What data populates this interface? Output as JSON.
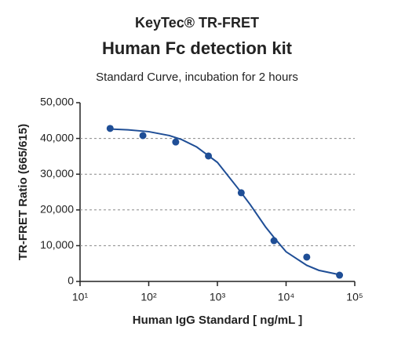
{
  "chart_data": {
    "type": "scatter",
    "title": "KeyTec® TR-FRET",
    "subtitle": "Human Fc detection kit",
    "caption": "Standard Curve, incubation for 2 hours",
    "x_label": "Human IgG Standard  [ ng/mL ]",
    "y_label": "TR-FRET Ratio (665/615)",
    "x_scale": "log",
    "xlim": [
      10,
      100000
    ],
    "xticks": [
      {
        "value": 10,
        "label": "10¹"
      },
      {
        "value": 100,
        "label": "10²"
      },
      {
        "value": 1000,
        "label": "10³"
      },
      {
        "value": 10000,
        "label": "10⁴"
      },
      {
        "value": 100000,
        "label": "10⁵"
      }
    ],
    "ylim": [
      0,
      50000
    ],
    "yticks": [
      0,
      {
        "value": 10000,
        "label": "10,000"
      },
      {
        "value": 20000,
        "label": "20,000"
      },
      {
        "value": 30000,
        "label": "30,000"
      },
      {
        "value": 40000,
        "label": "40,000"
      },
      {
        "value": 50000,
        "label": "50,000"
      }
    ],
    "grid": true,
    "series": [
      {
        "style": "markers",
        "color": "#1f4e96",
        "x": [
          27.4,
          82.3,
          247,
          740,
          2222,
          6667,
          20000,
          60000
        ],
        "values": [
          42800,
          40800,
          39000,
          35100,
          24800,
          11400,
          6800,
          1750
        ]
      },
      {
        "style": "line",
        "color": "#1f4e96",
        "x": [
          30,
          50,
          100,
          200,
          300,
          500,
          1000,
          2000,
          3000,
          5000,
          7000,
          10000,
          20000,
          30000,
          60000
        ],
        "values": [
          42600,
          42400,
          41900,
          40800,
          39700,
          37600,
          33300,
          26000,
          21500,
          15300,
          11800,
          8300,
          4500,
          3100,
          1900
        ]
      }
    ]
  }
}
